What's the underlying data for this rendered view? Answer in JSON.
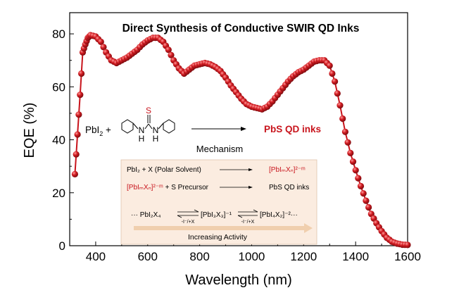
{
  "chart_data": {
    "type": "line",
    "title": "Direct Synthesis of Conductive SWIR QD Inks",
    "xlabel": "Wavelength (nm)",
    "ylabel": "EQE (%)",
    "xlim": [
      300,
      1600
    ],
    "ylim": [
      0,
      88
    ],
    "xticks": [
      "400",
      "600",
      "800",
      "1000",
      "1200",
      "1400",
      "1600"
    ],
    "yticks": [
      "0",
      "20",
      "40",
      "60",
      "80"
    ],
    "series_color": "#c8141c",
    "grid": false,
    "series": [
      {
        "name": "EQE",
        "points": [
          [
            320,
            27
          ],
          [
            330,
            42
          ],
          [
            340,
            57
          ],
          [
            350,
            73
          ],
          [
            360,
            76
          ],
          [
            370,
            78.5
          ],
          [
            380,
            79.5
          ],
          [
            400,
            79
          ],
          [
            420,
            77
          ],
          [
            440,
            73
          ],
          [
            460,
            70
          ],
          [
            480,
            69
          ],
          [
            500,
            70
          ],
          [
            520,
            71
          ],
          [
            540,
            72.5
          ],
          [
            560,
            74
          ],
          [
            580,
            76
          ],
          [
            600,
            77.5
          ],
          [
            620,
            78.5
          ],
          [
            640,
            78.5
          ],
          [
            660,
            77
          ],
          [
            680,
            74
          ],
          [
            700,
            70
          ],
          [
            720,
            67
          ],
          [
            740,
            65
          ],
          [
            760,
            66.5
          ],
          [
            780,
            68
          ],
          [
            800,
            68.5
          ],
          [
            820,
            69
          ],
          [
            840,
            68.5
          ],
          [
            860,
            67.5
          ],
          [
            880,
            66
          ],
          [
            900,
            63.5
          ],
          [
            920,
            60.5
          ],
          [
            940,
            58
          ],
          [
            960,
            55.5
          ],
          [
            980,
            53.5
          ],
          [
            1000,
            52.5
          ],
          [
            1020,
            52
          ],
          [
            1040,
            51.5
          ],
          [
            1060,
            52.5
          ],
          [
            1080,
            54.5
          ],
          [
            1100,
            57
          ],
          [
            1120,
            59.5
          ],
          [
            1140,
            62
          ],
          [
            1160,
            64
          ],
          [
            1180,
            65.5
          ],
          [
            1200,
            66.5
          ],
          [
            1220,
            68
          ],
          [
            1240,
            69.5
          ],
          [
            1260,
            70
          ],
          [
            1280,
            70
          ],
          [
            1300,
            68
          ],
          [
            1320,
            62
          ],
          [
            1340,
            53
          ],
          [
            1360,
            43
          ],
          [
            1380,
            35
          ],
          [
            1400,
            28.5
          ],
          [
            1420,
            22.5
          ],
          [
            1440,
            17
          ],
          [
            1460,
            12
          ],
          [
            1480,
            8.5
          ],
          [
            1500,
            5.5
          ],
          [
            1520,
            3
          ],
          [
            1540,
            1.5
          ],
          [
            1560,
            0.8
          ],
          [
            1580,
            0.4
          ],
          [
            1600,
            0.3
          ]
        ]
      }
    ],
    "annotations": {
      "reaction_reactant": "PbI2 +",
      "thiourea_s": "S",
      "thiourea_h": "H",
      "product": "PbS QD inks",
      "mechanism": "Mechanism"
    }
  },
  "mechanism_box": {
    "step1_left": "PbI₂ + X (Polar Solvent)",
    "step1_right": "[PbIₘXₙ]²⁻ᵐ",
    "step2_left_red": "[PbIₘXₙ]²⁻ᵐ",
    "step2_left_rest": " + S Precursor",
    "step2_right": "PbS QD inks",
    "equilibrium": "···  PbI₂X₄",
    "eq_species_2": "[PbI₃X₃]⁻¹",
    "eq_species_3": "[PbI₄X₂]⁻²···",
    "arrow_label_1": "-I⁻/+X",
    "arrow_label_2": "-I⁻/+X",
    "footer": "Increasing Activity"
  },
  "colors": {
    "accent": "#c8141c",
    "box_fill": "#fbece0",
    "cone_fill": "#fbe3cc"
  }
}
